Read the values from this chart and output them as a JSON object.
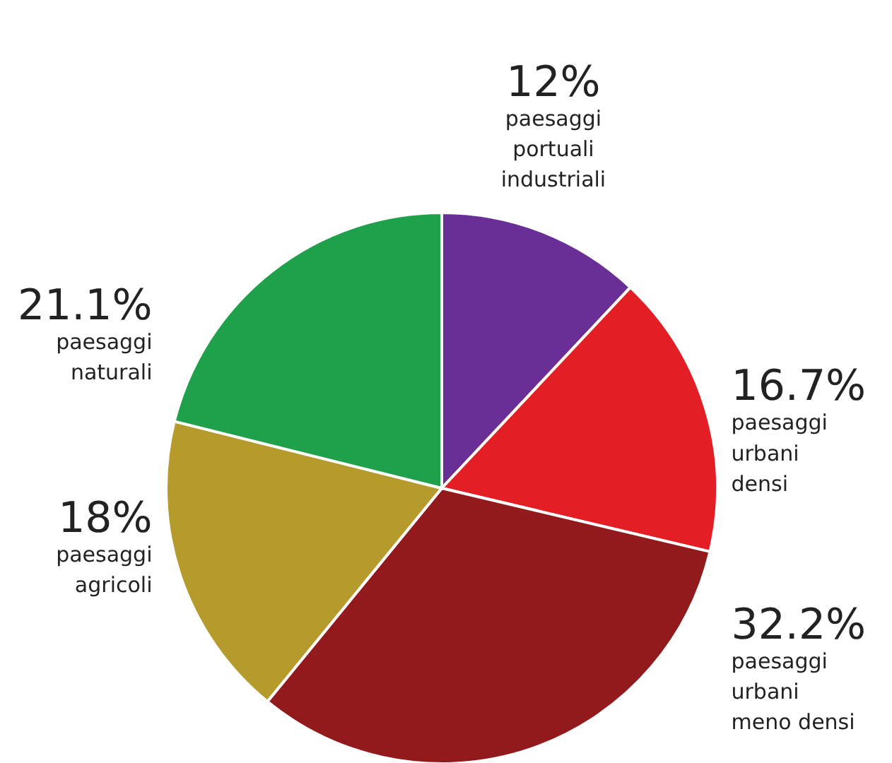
{
  "chart_data": {
    "type": "pie",
    "categories": [
      "paesaggi\nportuali\nindustriali",
      "paesaggi\nurbani\ndensi",
      "paesaggi\nurbani\nmeno densi",
      "paesaggi\nagricoli",
      "paesaggi\nnaturali"
    ],
    "values": [
      12,
      16.7,
      32.2,
      18,
      21.1
    ],
    "value_labels": [
      "12%",
      "16.7%",
      "32.2%",
      "18%",
      "21.1%"
    ],
    "colors": [
      "#6a2f96",
      "#e31e24",
      "#921a1d",
      "#b59a2c",
      "#1fa04a"
    ],
    "legend": false
  }
}
